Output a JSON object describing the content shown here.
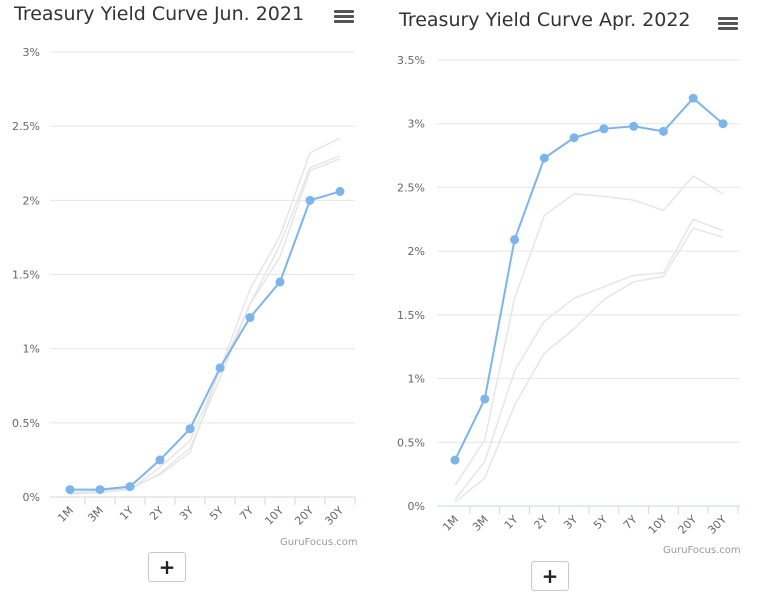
{
  "chart_data": [
    {
      "type": "line",
      "title": "Treasury Yield Curve Jun. 2021",
      "credit": "GuruFocus.com",
      "categories": [
        "1M",
        "3M",
        "1Y",
        "2Y",
        "3Y",
        "5Y",
        "7Y",
        "10Y",
        "20Y",
        "30Y"
      ],
      "y_tick_labels": [
        "0%",
        "0.5%",
        "1%",
        "1.5%",
        "2%",
        "2.5%",
        "3%"
      ],
      "ylim": [
        0,
        3
      ],
      "y_step": 0.5,
      "y_unit": "%",
      "grid": true,
      "legend": "none",
      "series": [
        {
          "values": [
            0.05,
            0.05,
            0.07,
            0.25,
            0.46,
            0.87,
            1.21,
            1.45,
            2.0,
            2.06
          ],
          "color": "#7cb5ec",
          "highlight": true
        },
        {
          "values": [
            0.02,
            0.03,
            0.05,
            0.2,
            0.38,
            0.85,
            1.3,
            1.62,
            2.2,
            2.28
          ],
          "color": "#e6e6e6",
          "highlight": false
        },
        {
          "values": [
            0.02,
            0.03,
            0.05,
            0.16,
            0.33,
            0.8,
            1.3,
            1.7,
            2.22,
            2.3
          ],
          "color": "#e6e6e6",
          "highlight": false
        },
        {
          "values": [
            0.03,
            0.04,
            0.06,
            0.15,
            0.3,
            0.86,
            1.4,
            1.76,
            2.32,
            2.42
          ],
          "color": "#e6e6e6",
          "highlight": false
        }
      ],
      "zoom_label": "+"
    },
    {
      "type": "line",
      "title": "Treasury Yield Curve Apr. 2022",
      "credit": "GuruFocus.com",
      "categories": [
        "1M",
        "3M",
        "1Y",
        "2Y",
        "3Y",
        "5Y",
        "7Y",
        "10Y",
        "20Y",
        "30Y"
      ],
      "y_tick_labels": [
        "0%",
        "0.5%",
        "1%",
        "1.5%",
        "2%",
        "2.5%",
        "3%",
        "3.5%"
      ],
      "ylim": [
        0,
        3.5
      ],
      "y_step": 0.5,
      "y_unit": "%",
      "grid": true,
      "legend": "none",
      "series": [
        {
          "values": [
            0.36,
            0.84,
            2.09,
            2.73,
            2.89,
            2.96,
            2.98,
            2.94,
            3.2,
            3.0
          ],
          "color": "#7cb5ec",
          "highlight": true
        },
        {
          "values": [
            0.16,
            0.52,
            1.63,
            2.28,
            2.45,
            2.43,
            2.4,
            2.32,
            2.59,
            2.45
          ],
          "color": "#e6e6e6",
          "highlight": false
        },
        {
          "values": [
            0.05,
            0.35,
            1.06,
            1.45,
            1.63,
            1.72,
            1.81,
            1.83,
            2.25,
            2.16
          ],
          "color": "#e6e6e6",
          "highlight": false
        },
        {
          "values": [
            0.03,
            0.22,
            0.79,
            1.2,
            1.39,
            1.62,
            1.76,
            1.8,
            2.18,
            2.11
          ],
          "color": "#e6e6e6",
          "highlight": false
        }
      ],
      "zoom_label": "+"
    }
  ]
}
